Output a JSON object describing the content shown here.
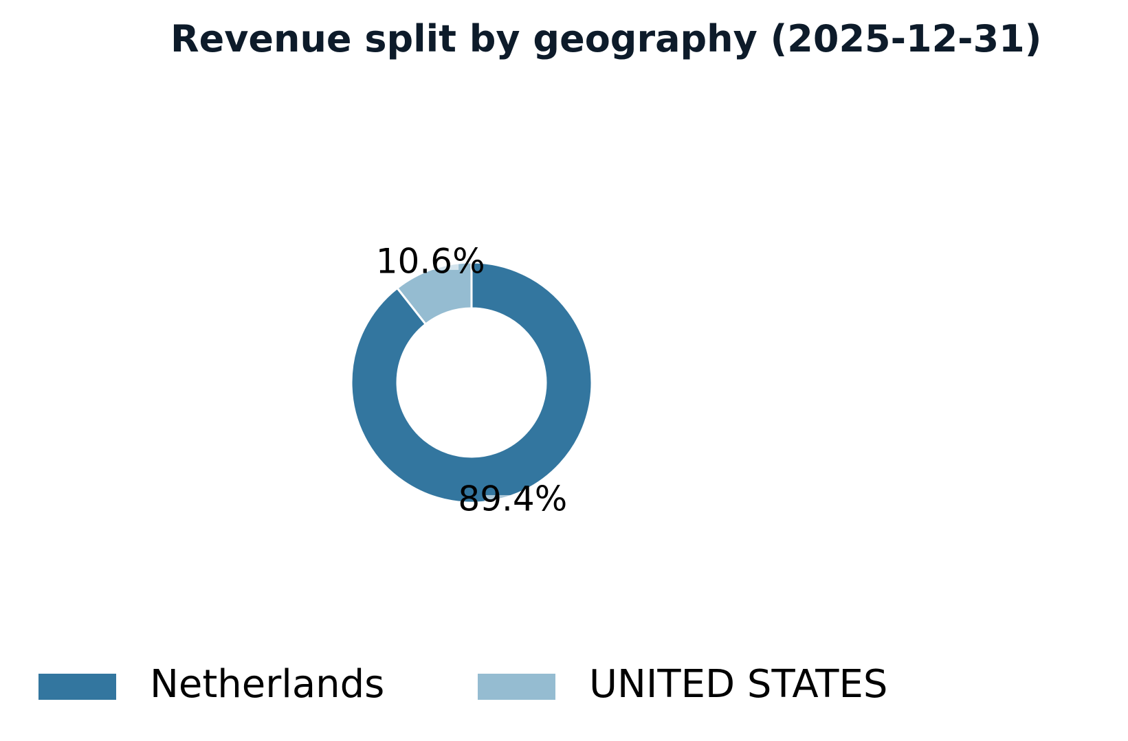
{
  "chart_data": {
    "type": "pie",
    "variant": "donut",
    "title": "Revenue split by geography (2025-12-31)",
    "categories": [
      "Netherlands",
      "UNITED STATES"
    ],
    "values": [
      89.4,
      10.6
    ],
    "value_labels": [
      "89.4%",
      "10.6%"
    ],
    "colors": [
      "#33769f",
      "#95bcd1"
    ],
    "title_color": "#0d1b2a",
    "legend_position": "bottom",
    "start_angle": "12 o'clock",
    "direction": "clockwise"
  }
}
